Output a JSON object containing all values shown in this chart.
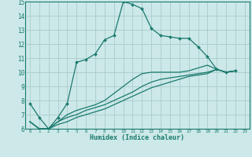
{
  "title": "",
  "xlabel": "Humidex (Indice chaleur)",
  "bg_color": "#cce8e8",
  "grid_color": "#aacccc",
  "line_color": "#1a7a6e",
  "xlim": [
    -0.5,
    23.5
  ],
  "ylim": [
    6,
    15
  ],
  "xticks": [
    0,
    1,
    2,
    3,
    4,
    5,
    6,
    7,
    8,
    9,
    10,
    11,
    12,
    13,
    14,
    15,
    16,
    17,
    18,
    19,
    20,
    21,
    22,
    23
  ],
  "yticks": [
    6,
    7,
    8,
    9,
    10,
    11,
    12,
    13,
    14,
    15
  ],
  "series": [
    [
      7.8,
      6.8,
      6.0,
      6.8,
      7.8,
      10.7,
      10.9,
      11.3,
      12.3,
      12.6,
      15.0,
      14.8,
      14.5,
      13.1,
      12.6,
      12.5,
      12.4,
      12.4,
      11.8,
      11.1,
      10.2,
      10.0,
      10.1
    ],
    [
      6.5,
      6.0,
      6.0,
      6.5,
      7.0,
      7.3,
      7.5,
      7.7,
      8.0,
      8.5,
      9.0,
      9.5,
      9.9,
      10.0,
      10.0,
      10.0,
      10.0,
      10.1,
      10.3,
      10.5,
      10.2,
      10.0,
      10.1
    ],
    [
      6.5,
      6.0,
      6.0,
      6.5,
      6.8,
      7.0,
      7.3,
      7.5,
      7.7,
      8.0,
      8.3,
      8.6,
      9.0,
      9.3,
      9.5,
      9.6,
      9.7,
      9.8,
      9.9,
      10.0,
      10.2,
      10.0,
      10.1
    ],
    [
      6.5,
      6.0,
      6.0,
      6.3,
      6.5,
      6.8,
      7.0,
      7.2,
      7.4,
      7.7,
      8.0,
      8.3,
      8.6,
      8.9,
      9.1,
      9.3,
      9.5,
      9.7,
      9.8,
      9.9,
      10.2,
      10.0,
      10.1
    ]
  ],
  "markers": [
    true,
    false,
    false,
    false
  ]
}
